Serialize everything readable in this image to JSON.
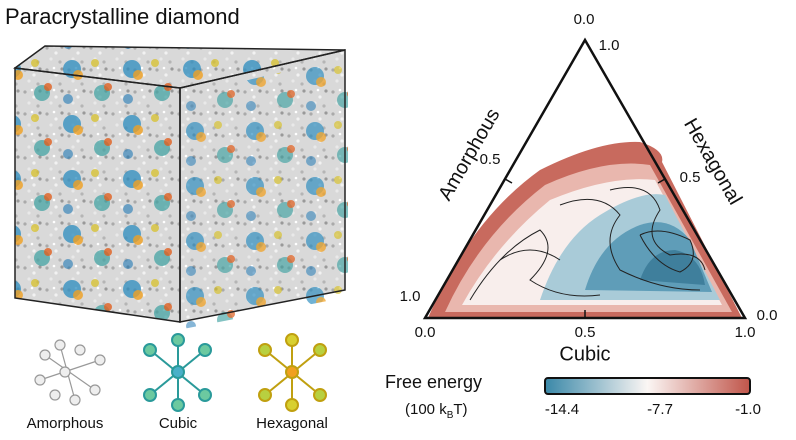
{
  "title": "Paracrystalline diamond",
  "structures": [
    {
      "label": "Amorphous"
    },
    {
      "label": "Cubic"
    },
    {
      "label": "Hexagonal"
    }
  ],
  "ternary": {
    "bottom_axis": {
      "title": "Cubic",
      "ticks": [
        "0.0",
        "0.5",
        "1.0"
      ]
    },
    "left_axis": {
      "title": "Amorphous",
      "ticks": [
        "0.0",
        "0.5",
        "1.0"
      ]
    },
    "right_axis": {
      "title": "Hexagonal",
      "ticks": [
        "1.0",
        "0.5",
        "0.0"
      ]
    }
  },
  "colorbar": {
    "title": "Free energy",
    "unit_start": "(100 k",
    "unit_sub": "B",
    "unit_end": "T)",
    "ticks": [
      "-14.4",
      "-7.7",
      "-1.0"
    ]
  }
}
